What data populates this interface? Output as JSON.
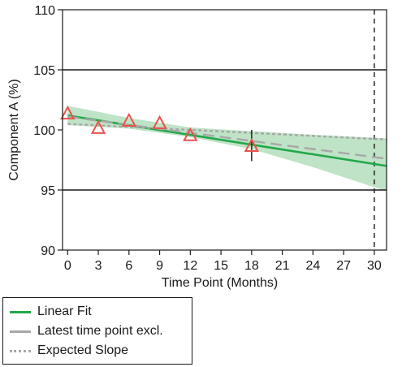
{
  "chart_data": {
    "type": "scatter",
    "title": "",
    "xlabel": "Time Point (Months)",
    "ylabel": "Component A (%)",
    "xlim": [
      -0.5,
      31.2
    ],
    "ylim": [
      90,
      110
    ],
    "xticks": [
      0,
      3,
      6,
      9,
      12,
      15,
      18,
      21,
      24,
      27,
      30
    ],
    "yticks": [
      90,
      95,
      100,
      105,
      110
    ],
    "grid": false,
    "spec_limits": [
      95,
      105
    ],
    "shelf_life_marker": 30,
    "observed": {
      "marker": "triangle",
      "x": [
        0,
        3,
        6,
        9,
        12,
        18
      ],
      "y": [
        101.3,
        100.1,
        100.7,
        100.5,
        99.5,
        98.6
      ]
    },
    "series": [
      {
        "name": "Linear Fit",
        "style": "solid",
        "color": "#22a84a",
        "x": [
          0,
          31.2
        ],
        "y": [
          101.2,
          97.0
        ]
      },
      {
        "name": "Latest time point excl.",
        "style": "dashed",
        "color": "#a8a8a8",
        "x": [
          0,
          31.2
        ],
        "y": [
          101.1,
          97.6
        ]
      },
      {
        "name": "Expected Slope",
        "style": "dotted",
        "color": "#a8a8a8",
        "x": [
          0,
          31.2
        ],
        "y": [
          100.5,
          99.2
        ]
      }
    ],
    "confidence_band": {
      "color": "#bfe3c6",
      "x": [
        0,
        6,
        12,
        18,
        24,
        31.2
      ],
      "upper": [
        102.0,
        101.0,
        100.2,
        99.9,
        99.6,
        99.3
      ],
      "lower": [
        100.4,
        100.1,
        99.4,
        98.4,
        96.9,
        94.9
      ]
    },
    "error_bar": {
      "x": 18,
      "low": 97.4,
      "high": 100.0
    },
    "legend_position": "bottom-left",
    "colors": {
      "marker": "#e8524a",
      "axis": "#1a1a1a"
    }
  }
}
